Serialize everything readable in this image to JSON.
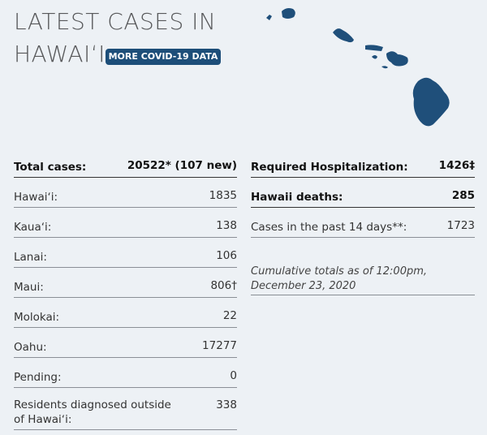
{
  "header": {
    "title": [
      "LATEST CASES IN",
      "HAWAIʻI"
    ],
    "button": "MORE COVID-19 DATA"
  },
  "left": {
    "rows": [
      [
        "Total cases:",
        "20522* (107 new)"
      ],
      [
        "Hawaiʻi:",
        "1835"
      ],
      [
        "Kauaʻi:",
        "138"
      ],
      [
        "Lanai:",
        "106"
      ],
      [
        "Maui:",
        "806†"
      ],
      [
        "Molokai:",
        "22"
      ],
      [
        "Oahu:",
        "17277"
      ],
      [
        "Pending:",
        "0"
      ],
      [
        "Residents diagnosed outside of Hawaiʻi:",
        "338"
      ]
    ]
  },
  "right": {
    "rows": [
      [
        "Required Hospitalization:",
        "1426‡"
      ],
      [
        "Hawaii deaths:",
        "285"
      ],
      [
        "Cases in the past 14 days**:",
        "1723"
      ]
    ],
    "note": "Cumulative totals as of 12:00pm, December 23, 2020"
  }
}
